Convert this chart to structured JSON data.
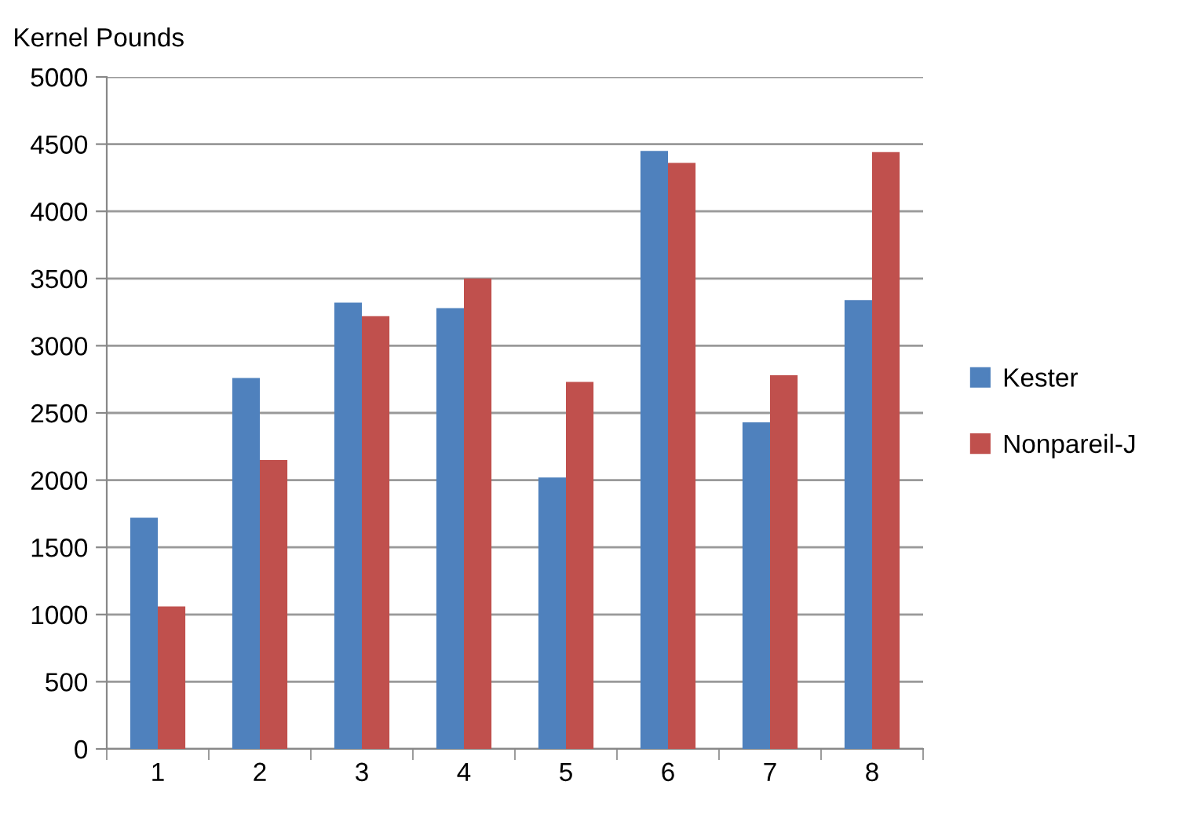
{
  "chart_data": {
    "type": "bar",
    "title": "Kernel Pounds",
    "categories": [
      "1",
      "2",
      "3",
      "4",
      "5",
      "6",
      "7",
      "8"
    ],
    "series": [
      {
        "name": "Kester",
        "color": "#4f81bd",
        "values": [
          1720,
          2760,
          3320,
          3280,
          2020,
          4450,
          2430,
          3340
        ]
      },
      {
        "name": "Nonpareil-J",
        "color": "#c0504d",
        "values": [
          1060,
          2150,
          3220,
          3500,
          2730,
          4360,
          2780,
          4440
        ]
      }
    ],
    "ylim": [
      0,
      5000
    ],
    "yticks": [
      0,
      500,
      1000,
      1500,
      2000,
      2500,
      3000,
      3500,
      4000,
      4500,
      5000
    ],
    "grid": "y",
    "legend": "right"
  }
}
